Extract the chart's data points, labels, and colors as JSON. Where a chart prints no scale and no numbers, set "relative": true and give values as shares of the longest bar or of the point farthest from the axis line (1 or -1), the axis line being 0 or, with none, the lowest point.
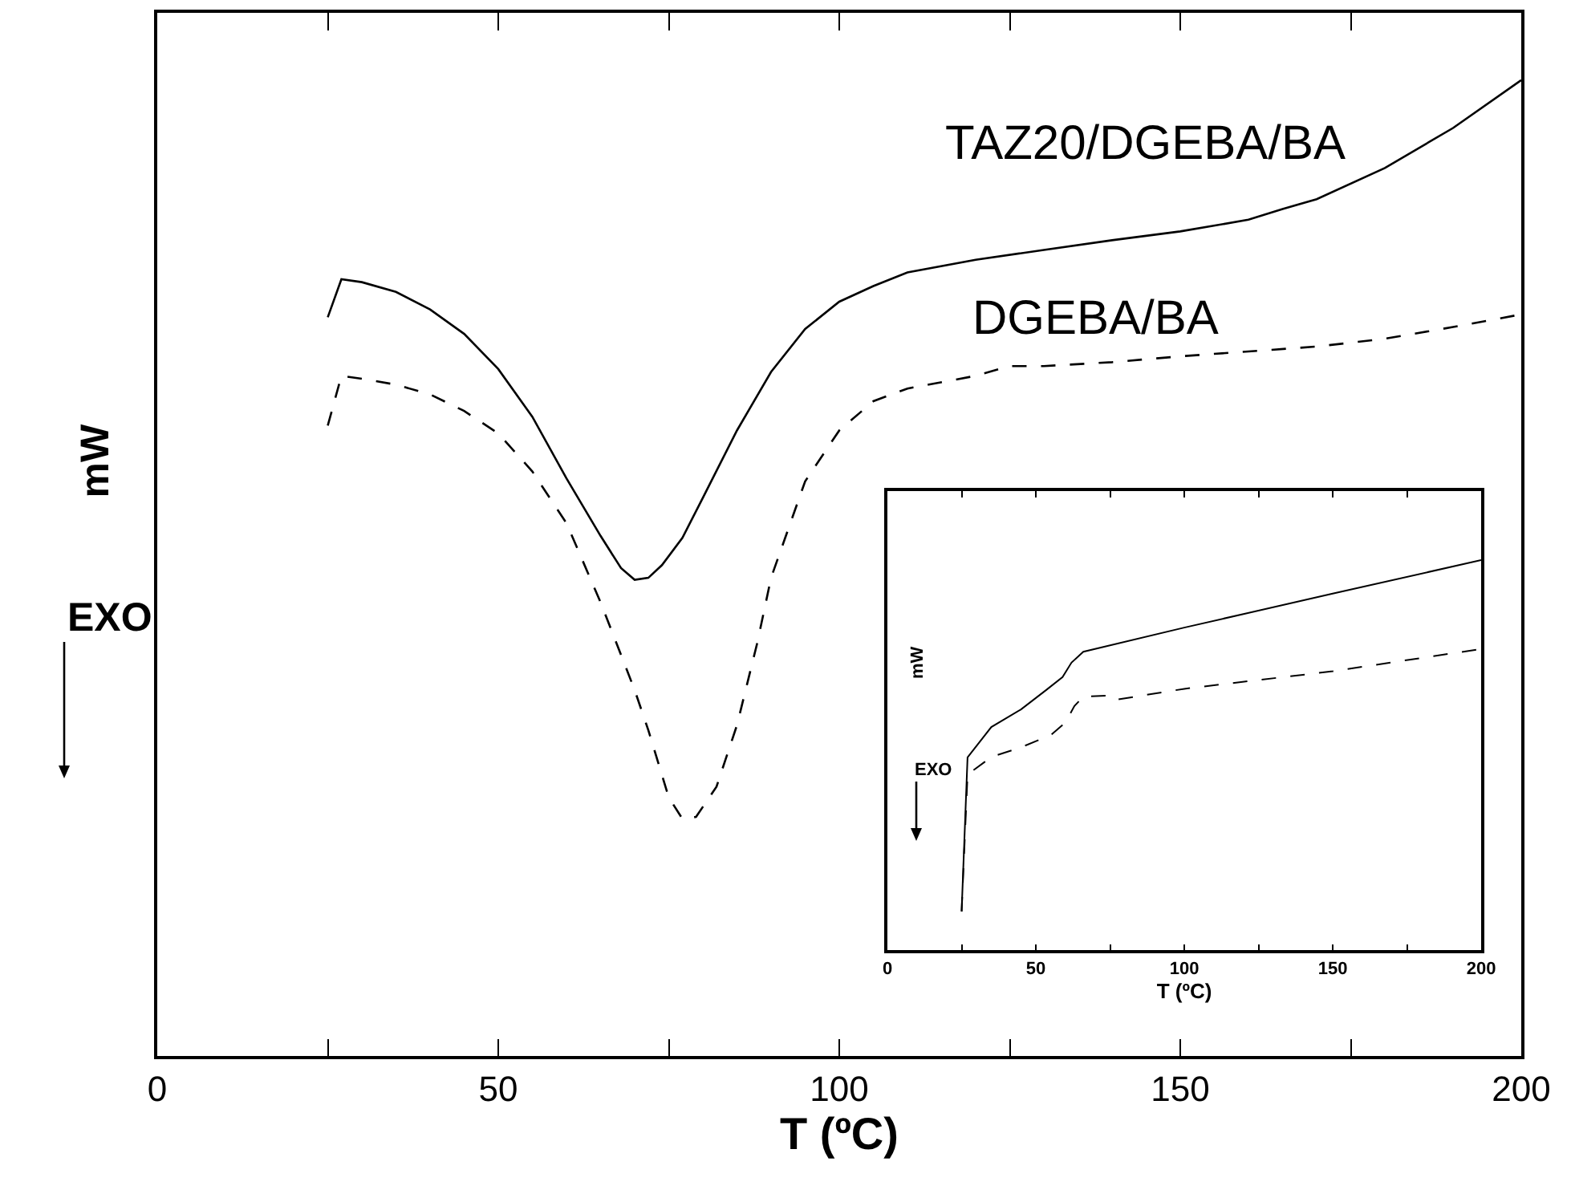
{
  "chart_data": [
    {
      "type": "line",
      "xlabel": "T (ºC)",
      "ylabel": "mW",
      "relative": true,
      "legend": false,
      "grid": false,
      "marker": "none",
      "annotations": [
        "EXO"
      ],
      "xlim": [
        0,
        200
      ],
      "xticks": [
        0,
        {
          "value": 25,
          "label": null
        },
        50,
        {
          "value": 75,
          "label": null
        },
        100,
        {
          "value": 125,
          "label": null
        },
        150,
        {
          "value": 175,
          "label": null
        },
        200
      ],
      "series": [
        {
          "name": "TAZ20/DGEBA/BA",
          "color": "#000000",
          "line_style": "solid",
          "x": [
            25,
            27,
            30,
            35,
            40,
            45,
            50,
            55,
            60,
            65,
            68,
            70,
            72,
            74,
            77,
            80,
            85,
            90,
            95,
            100,
            105,
            110,
            120,
            130,
            140,
            150,
            160,
            165,
            170,
            180,
            190,
            200
          ],
          "values": [
            0.757,
            0.796,
            0.793,
            0.783,
            0.765,
            0.74,
            0.704,
            0.655,
            0.592,
            0.533,
            0.5,
            0.488,
            0.49,
            0.503,
            0.531,
            0.572,
            0.641,
            0.701,
            0.745,
            0.773,
            0.789,
            0.803,
            0.816,
            0.826,
            0.836,
            0.845,
            0.857,
            0.868,
            0.878,
            0.91,
            0.951,
            1
          ]
        },
        {
          "name": "DGEBA/BA",
          "color": "#000000",
          "line_style": "dashed",
          "x": [
            25,
            27,
            30,
            35,
            40,
            45,
            50,
            55,
            60,
            65,
            70,
            72,
            75,
            77,
            79,
            82,
            85,
            88,
            90,
            95,
            100,
            105,
            110,
            120,
            125,
            130,
            140,
            150,
            160,
            170,
            180,
            190,
            200
          ],
          "values": [
            0.646,
            0.697,
            0.694,
            0.688,
            0.678,
            0.661,
            0.638,
            0.599,
            0.546,
            0.465,
            0.375,
            0.334,
            0.265,
            0.243,
            0.245,
            0.276,
            0.339,
            0.424,
            0.49,
            0.589,
            0.641,
            0.671,
            0.684,
            0.697,
            0.707,
            0.707,
            0.711,
            0.717,
            0.722,
            0.727,
            0.735,
            0.747,
            0.76
          ]
        }
      ]
    },
    {
      "type": "line",
      "xlabel": "T (ºC)",
      "ylabel": "mW",
      "relative": true,
      "legend": false,
      "grid": false,
      "marker": "none",
      "annotations": [
        "EXO"
      ],
      "xlim": [
        0,
        200
      ],
      "xticks": [
        0,
        {
          "value": 25,
          "label": null
        },
        50,
        {
          "value": 75,
          "label": null
        },
        100,
        {
          "value": 125,
          "label": null
        },
        150,
        {
          "value": 175,
          "label": null
        },
        200
      ],
      "series": [
        {
          "color": "#000000",
          "line_style": "solid",
          "x": [
            25,
            27,
            35,
            45,
            53.5,
            59,
            62,
            66,
            100,
            150,
            200
          ],
          "values": [
            0.099,
            0.494,
            0.572,
            0.617,
            0.667,
            0.7,
            0.737,
            0.765,
            0.827,
            0.914,
            1
          ]
        },
        {
          "color": "#000000",
          "line_style": "dashed",
          "x": [
            25,
            27,
            35,
            45,
            55,
            60,
            63,
            66,
            75,
            77,
            100,
            150,
            200
          ],
          "values": [
            0.099,
            0.45,
            0.495,
            0.52,
            0.551,
            0.584,
            0.626,
            0.65,
            0.653,
            0.642,
            0.67,
            0.715,
            0.772
          ]
        }
      ]
    }
  ]
}
